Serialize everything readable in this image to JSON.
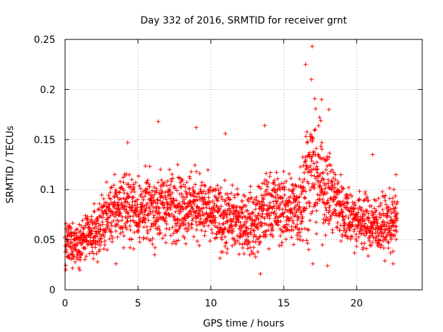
{
  "chart_data": {
    "type": "scatter",
    "title": "Day 332 of 2016, SRMTID for receiver grnt",
    "xlabel": "GPS time / hours",
    "ylabel": "SRMTID / TECUs",
    "xlim": [
      0,
      24.5
    ],
    "ylim": [
      0,
      0.25
    ],
    "x_ticks": [
      0,
      5,
      10,
      15,
      20
    ],
    "x_tick_labels": [
      "0",
      "5",
      "10",
      "15",
      "20"
    ],
    "y_ticks": [
      0,
      0.05,
      0.1,
      0.15,
      0.2,
      0.25
    ],
    "y_tick_labels": [
      "0",
      "0.05",
      "0.1",
      "0.15",
      "0.2",
      "0.25"
    ],
    "grid": true,
    "marker": "+",
    "color": "#ff0000",
    "series": [
      {
        "name": "SRMTID",
        "trend_hours": [
          0,
          1,
          2,
          3,
          4,
          5,
          6,
          7,
          8,
          9,
          10,
          11,
          12,
          13,
          14,
          15,
          16,
          16.5,
          17,
          17.5,
          18,
          19,
          20,
          21,
          22,
          22.8
        ],
        "trend_values": [
          0.045,
          0.048,
          0.055,
          0.075,
          0.085,
          0.08,
          0.08,
          0.085,
          0.085,
          0.085,
          0.075,
          0.07,
          0.07,
          0.065,
          0.085,
          0.08,
          0.08,
          0.11,
          0.12,
          0.11,
          0.1,
          0.08,
          0.07,
          0.065,
          0.065,
          0.07
        ],
        "spread_values": [
          0.018,
          0.018,
          0.022,
          0.025,
          0.03,
          0.028,
          0.03,
          0.03,
          0.03,
          0.03,
          0.028,
          0.028,
          0.025,
          0.03,
          0.03,
          0.03,
          0.035,
          0.05,
          0.05,
          0.045,
          0.035,
          0.028,
          0.025,
          0.025,
          0.025,
          0.025
        ],
        "notable_points": [
          {
            "x": 16.95,
            "y": 0.243
          },
          {
            "x": 16.5,
            "y": 0.225
          },
          {
            "x": 16.9,
            "y": 0.21
          },
          {
            "x": 17.6,
            "y": 0.19
          },
          {
            "x": 18.1,
            "y": 0.18
          },
          {
            "x": 6.4,
            "y": 0.168
          },
          {
            "x": 9.0,
            "y": 0.162
          },
          {
            "x": 13.7,
            "y": 0.164
          },
          {
            "x": 11.0,
            "y": 0.156
          },
          {
            "x": 4.3,
            "y": 0.147
          },
          {
            "x": 13.4,
            "y": 0.016
          },
          {
            "x": 3.5,
            "y": 0.026
          },
          {
            "x": 17.0,
            "y": 0.026
          },
          {
            "x": 18.0,
            "y": 0.024
          },
          {
            "x": 0.05,
            "y": 0.02
          },
          {
            "x": 22.5,
            "y": 0.026
          },
          {
            "x": 22.7,
            "y": 0.115
          },
          {
            "x": 21.1,
            "y": 0.135
          }
        ],
        "x_range": [
          0,
          22.8
        ],
        "sample_interval_hours": 0.01
      }
    ]
  }
}
